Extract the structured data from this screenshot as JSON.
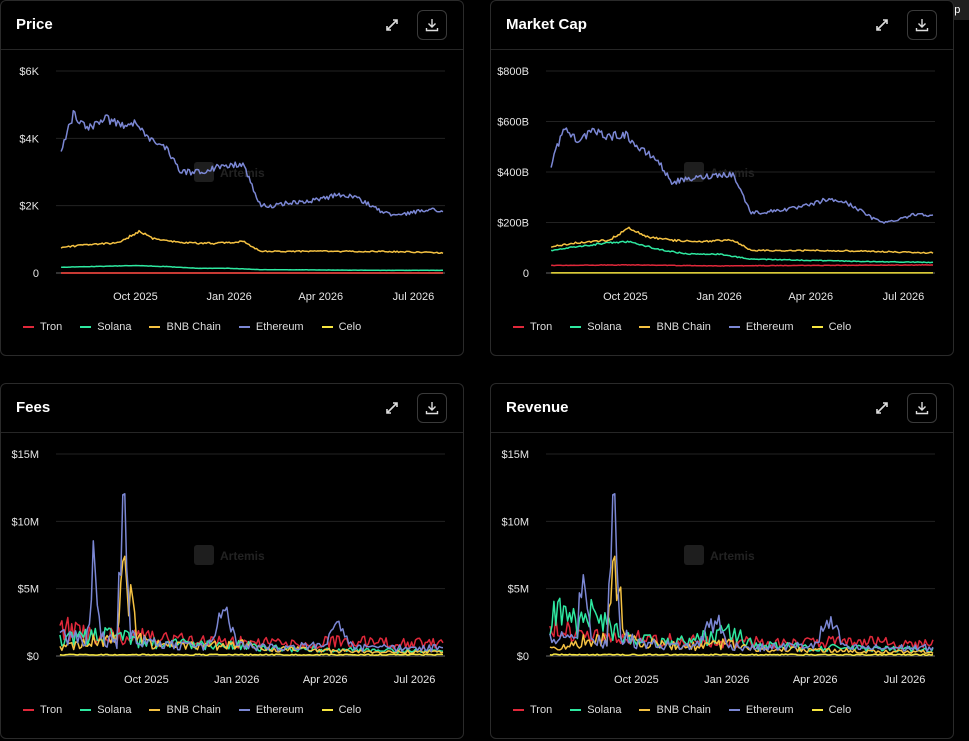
{
  "help_label": "Help",
  "icons": {
    "expand": "expand-icon",
    "download": "download-icon",
    "watermark": "artemis-logo"
  },
  "watermark_text": "Artemis",
  "series_colors": {
    "Tron": "#e0283a",
    "Solana": "#2ee8a0",
    "BNB Chain": "#f5c242",
    "Ethereum": "#7b87d4",
    "Celo": "#f7e640"
  },
  "legend": [
    "Tron",
    "Solana",
    "BNB Chain",
    "Ethereum",
    "Celo"
  ],
  "chart_data": [
    {
      "id": "price",
      "type": "line",
      "title": "Price",
      "x_range": [
        "2025-07-15",
        "2026-08-01"
      ],
      "x_ticks": [
        "2025-10-01",
        "2026-01-01",
        "2026-04-01",
        "2026-07-01"
      ],
      "x_tick_labels": [
        "Oct 2025",
        "Jan 2026",
        "Apr 2026",
        "Jul 2026"
      ],
      "ylim": [
        0,
        6000
      ],
      "y_ticks": [
        0,
        2000,
        4000,
        6000
      ],
      "y_tick_labels": [
        "0",
        "$2K",
        "$4K",
        "$6K"
      ],
      "series": [
        {
          "name": "Ethereum",
          "x": [
            "2025-07-20",
            "2025-08-01",
            "2025-08-15",
            "2025-09-01",
            "2025-09-15",
            "2025-10-01",
            "2025-10-15",
            "2025-11-01",
            "2025-11-15",
            "2025-12-01",
            "2025-12-15",
            "2026-01-01",
            "2026-01-15",
            "2026-02-01",
            "2026-02-15",
            "2026-03-01",
            "2026-03-15",
            "2026-04-01",
            "2026-04-15",
            "2026-05-01",
            "2026-05-15",
            "2026-06-01",
            "2026-06-15",
            "2026-07-01",
            "2026-07-15",
            "2026-07-31"
          ],
          "y": [
            3600,
            4700,
            4300,
            4600,
            4400,
            4500,
            4000,
            3700,
            3000,
            3000,
            3100,
            3200,
            3200,
            2000,
            2000,
            2100,
            2100,
            2200,
            2300,
            2300,
            2100,
            1800,
            1700,
            1800,
            1900,
            1850
          ]
        },
        {
          "name": "BNB Chain",
          "x": [
            "2025-07-20",
            "2025-08-15",
            "2025-09-15",
            "2025-10-05",
            "2025-10-20",
            "2025-11-15",
            "2025-12-15",
            "2026-01-15",
            "2026-02-01",
            "2026-03-01",
            "2026-04-01",
            "2026-05-01",
            "2026-06-01",
            "2026-07-01",
            "2026-07-31"
          ],
          "y": [
            750,
            850,
            900,
            1250,
            1000,
            900,
            880,
            930,
            650,
            640,
            650,
            640,
            640,
            620,
            600
          ]
        },
        {
          "name": "Solana",
          "x": [
            "2025-07-20",
            "2025-09-01",
            "2025-10-01",
            "2025-11-01",
            "2025-12-01",
            "2026-01-01",
            "2026-02-01",
            "2026-04-01",
            "2026-06-01",
            "2026-07-31"
          ],
          "y": [
            170,
            200,
            220,
            190,
            140,
            140,
            100,
            90,
            80,
            80
          ]
        },
        {
          "name": "Tron",
          "x": [
            "2025-07-20",
            "2026-07-31"
          ],
          "y": [
            0.3,
            0.3
          ]
        },
        {
          "name": "Celo",
          "x": [
            "2025-07-20",
            "2026-07-31"
          ],
          "y": [
            0.3,
            0.3
          ]
        }
      ]
    },
    {
      "id": "market-cap",
      "type": "line",
      "title": "Market Cap",
      "x_range": [
        "2025-07-15",
        "2026-08-01"
      ],
      "x_ticks": [
        "2025-10-01",
        "2026-01-01",
        "2026-04-01",
        "2026-07-01"
      ],
      "x_tick_labels": [
        "Oct 2025",
        "Jan 2026",
        "Apr 2026",
        "Jul 2026"
      ],
      "ylim": [
        0,
        800
      ],
      "y_ticks": [
        0,
        200,
        400,
        600,
        800
      ],
      "y_tick_labels": [
        "0",
        "$200B",
        "$400B",
        "$600B",
        "$800B"
      ],
      "series": [
        {
          "name": "Ethereum",
          "x": [
            "2025-07-20",
            "2025-08-01",
            "2025-08-15",
            "2025-09-01",
            "2025-09-15",
            "2025-10-01",
            "2025-10-15",
            "2025-11-01",
            "2025-11-15",
            "2025-12-01",
            "2025-12-15",
            "2026-01-01",
            "2026-01-15",
            "2026-02-01",
            "2026-02-15",
            "2026-03-01",
            "2026-03-15",
            "2026-04-01",
            "2026-04-15",
            "2026-05-01",
            "2026-05-15",
            "2026-06-01",
            "2026-06-15",
            "2026-07-01",
            "2026-07-15",
            "2026-07-31"
          ],
          "y": [
            430,
            570,
            530,
            560,
            540,
            550,
            490,
            450,
            360,
            370,
            380,
            390,
            390,
            240,
            240,
            250,
            255,
            270,
            290,
            285,
            260,
            215,
            200,
            220,
            235,
            230
          ]
        },
        {
          "name": "BNB Chain",
          "x": [
            "2025-07-20",
            "2025-08-15",
            "2025-09-15",
            "2025-10-05",
            "2025-10-20",
            "2025-11-15",
            "2025-12-15",
            "2026-01-15",
            "2026-02-01",
            "2026-03-01",
            "2026-04-01",
            "2026-05-01",
            "2026-06-01",
            "2026-07-01",
            "2026-07-31"
          ],
          "y": [
            105,
            120,
            130,
            180,
            145,
            130,
            125,
            130,
            90,
            88,
            90,
            88,
            86,
            82,
            80
          ]
        },
        {
          "name": "Solana",
          "x": [
            "2025-07-20",
            "2025-08-15",
            "2025-09-15",
            "2025-10-05",
            "2025-11-01",
            "2025-12-01",
            "2026-01-01",
            "2026-02-01",
            "2026-04-01",
            "2026-06-01",
            "2026-07-31"
          ],
          "y": [
            90,
            105,
            120,
            125,
            95,
            75,
            75,
            55,
            50,
            45,
            42
          ]
        },
        {
          "name": "Tron",
          "x": [
            "2025-07-20",
            "2025-10-01",
            "2026-01-01",
            "2026-04-01",
            "2026-07-31"
          ],
          "y": [
            30,
            32,
            28,
            30,
            32
          ]
        },
        {
          "name": "Celo",
          "x": [
            "2025-07-20",
            "2026-07-31"
          ],
          "y": [
            0.3,
            0.3
          ]
        }
      ]
    },
    {
      "id": "fees",
      "type": "line",
      "title": "Fees",
      "x_range": [
        "2025-07-01",
        "2026-08-01"
      ],
      "x_ticks": [
        "2025-10-01",
        "2026-01-01",
        "2026-04-01",
        "2026-07-01"
      ],
      "x_tick_labels": [
        "Oct 2025",
        "Jan 2026",
        "Apr 2026",
        "Jul 2026"
      ],
      "ylim": [
        0,
        15
      ],
      "y_ticks": [
        0,
        5,
        10,
        15
      ],
      "y_tick_labels": [
        "$0",
        "$5M",
        "$10M",
        "$15M"
      ],
      "series": [
        {
          "name": "Tron",
          "x": [
            "2025-07-05",
            "2025-08-01",
            "2025-09-01",
            "2025-10-01",
            "2025-11-01",
            "2025-12-01",
            "2026-01-01",
            "2026-02-01",
            "2026-03-01",
            "2026-04-01",
            "2026-05-01",
            "2026-06-01",
            "2026-07-01",
            "2026-07-31"
          ],
          "y": [
            2.3,
            1.6,
            1.5,
            1.4,
            1.2,
            1.1,
            1.0,
            1.0,
            0.9,
            1.0,
            1.1,
            1.0,
            0.9,
            1.0
          ]
        },
        {
          "name": "Solana",
          "x": [
            "2025-07-05",
            "2025-08-01",
            "2025-09-01",
            "2025-10-01",
            "2025-11-01",
            "2025-12-01",
            "2026-01-01",
            "2026-02-01",
            "2026-03-01",
            "2026-04-01",
            "2026-05-01",
            "2026-06-01",
            "2026-07-01",
            "2026-07-31"
          ],
          "y": [
            1.3,
            1.4,
            1.5,
            1.0,
            0.9,
            0.8,
            0.9,
            0.6,
            0.5,
            0.5,
            0.5,
            0.4,
            0.4,
            0.4
          ]
        },
        {
          "name": "BNB Chain",
          "x": [
            "2025-07-05",
            "2025-08-15",
            "2025-09-01",
            "2025-09-08",
            "2025-09-15",
            "2025-09-22",
            "2025-10-01",
            "2025-11-01",
            "2025-12-01",
            "2026-01-01",
            "2026-02-01",
            "2026-03-01",
            "2026-04-01",
            "2026-05-01",
            "2026-06-01",
            "2026-07-01",
            "2026-07-31"
          ],
          "y": [
            0.6,
            1.2,
            1.2,
            8.0,
            3.8,
            1.5,
            1.0,
            0.8,
            0.7,
            0.9,
            0.5,
            0.5,
            0.4,
            0.4,
            0.3,
            0.3,
            0.3
          ]
        },
        {
          "name": "Ethereum",
          "x": [
            "2025-07-05",
            "2025-08-01",
            "2025-08-08",
            "2025-08-15",
            "2025-09-01",
            "2025-09-08",
            "2025-09-15",
            "2025-10-01",
            "2025-11-01",
            "2025-12-01",
            "2025-12-20",
            "2026-01-01",
            "2026-02-01",
            "2026-03-01",
            "2026-04-01",
            "2026-04-15",
            "2026-05-01",
            "2026-06-01",
            "2026-07-01",
            "2026-07-31"
          ],
          "y": [
            1.5,
            1.2,
            6.4,
            1.3,
            1.0,
            13.8,
            1.5,
            1.0,
            0.8,
            0.7,
            3.0,
            0.8,
            0.6,
            0.7,
            0.8,
            2.6,
            0.6,
            0.6,
            0.6,
            0.6
          ]
        },
        {
          "name": "Celo",
          "x": [
            "2025-07-05",
            "2026-07-31"
          ],
          "y": [
            0.1,
            0.1
          ]
        }
      ]
    },
    {
      "id": "revenue",
      "type": "line",
      "title": "Revenue",
      "x_range": [
        "2025-07-01",
        "2026-08-01"
      ],
      "x_ticks": [
        "2025-10-01",
        "2026-01-01",
        "2026-04-01",
        "2026-07-01"
      ],
      "x_tick_labels": [
        "Oct 2025",
        "Jan 2026",
        "Apr 2026",
        "Jul 2026"
      ],
      "ylim": [
        0,
        15
      ],
      "y_ticks": [
        0,
        5,
        10,
        15
      ],
      "y_tick_labels": [
        "$0",
        "$5M",
        "$10M",
        "$15M"
      ],
      "series": [
        {
          "name": "Tron",
          "x": [
            "2025-07-05",
            "2025-08-01",
            "2025-09-01",
            "2025-10-01",
            "2025-11-01",
            "2025-12-01",
            "2026-01-01",
            "2026-02-01",
            "2026-03-01",
            "2026-04-01",
            "2026-05-01",
            "2026-06-01",
            "2026-07-01",
            "2026-07-31"
          ],
          "y": [
            2.3,
            1.6,
            1.5,
            1.4,
            1.2,
            1.1,
            1.0,
            1.0,
            0.9,
            1.0,
            1.1,
            1.0,
            0.9,
            1.0
          ]
        },
        {
          "name": "Solana",
          "x": [
            "2025-07-05",
            "2025-07-20",
            "2025-08-01",
            "2025-08-20",
            "2025-09-01",
            "2025-10-01",
            "2025-11-01",
            "2025-12-01",
            "2026-01-01",
            "2026-02-01",
            "2026-03-01",
            "2026-04-01",
            "2026-05-01",
            "2026-06-01",
            "2026-07-01",
            "2026-07-31"
          ],
          "y": [
            2.5,
            3.8,
            2.2,
            3.5,
            2.0,
            1.3,
            1.0,
            1.2,
            1.8,
            0.8,
            0.7,
            0.6,
            0.6,
            0.5,
            0.5,
            0.5
          ]
        },
        {
          "name": "BNB Chain",
          "x": [
            "2025-07-05",
            "2025-08-15",
            "2025-09-01",
            "2025-09-08",
            "2025-09-15",
            "2025-09-22",
            "2025-10-01",
            "2025-11-01",
            "2025-12-01",
            "2026-01-01",
            "2026-02-01",
            "2026-03-01",
            "2026-04-01",
            "2026-05-01",
            "2026-06-01",
            "2026-07-01",
            "2026-07-31"
          ],
          "y": [
            0.6,
            1.2,
            1.2,
            8.0,
            3.8,
            1.5,
            1.0,
            0.8,
            0.7,
            0.9,
            0.5,
            0.5,
            0.4,
            0.4,
            0.3,
            0.3,
            0.3
          ]
        },
        {
          "name": "Ethereum",
          "x": [
            "2025-07-05",
            "2025-08-01",
            "2025-08-08",
            "2025-08-15",
            "2025-09-01",
            "2025-09-08",
            "2025-09-15",
            "2025-10-01",
            "2025-11-01",
            "2025-12-01",
            "2025-12-20",
            "2026-01-01",
            "2026-02-01",
            "2026-03-01",
            "2026-04-01",
            "2026-04-15",
            "2026-05-01",
            "2026-06-01",
            "2026-07-01",
            "2026-07-31"
          ],
          "y": [
            1.5,
            1.2,
            6.4,
            1.3,
            1.0,
            13.8,
            1.5,
            1.0,
            0.8,
            0.7,
            3.0,
            0.8,
            0.6,
            0.7,
            0.8,
            2.6,
            0.6,
            0.6,
            0.6,
            0.6
          ]
        },
        {
          "name": "Celo",
          "x": [
            "2025-07-05",
            "2026-07-31"
          ],
          "y": [
            0.1,
            0.1
          ]
        }
      ]
    }
  ]
}
